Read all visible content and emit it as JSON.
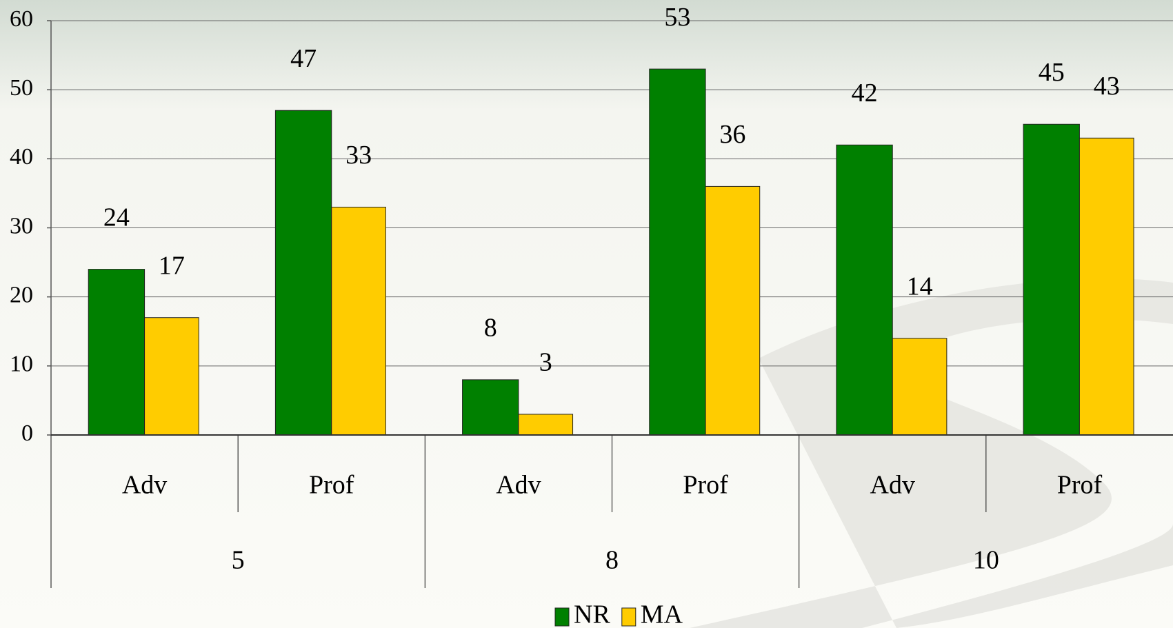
{
  "chart_data": {
    "type": "bar",
    "categories": [
      "Adv",
      "Prof",
      "Adv",
      "Prof",
      "Adv",
      "Prof"
    ],
    "groups": [
      "5",
      "8",
      "10"
    ],
    "series": [
      {
        "name": "NR",
        "color": "#008000",
        "values": [
          24,
          47,
          8,
          53,
          42,
          45
        ]
      },
      {
        "name": "MA",
        "color": "#ffcc00",
        "values": [
          17,
          33,
          3,
          36,
          14,
          43
        ]
      }
    ],
    "ylim": [
      0,
      60
    ],
    "yticks": [
      0,
      10,
      20,
      30,
      40,
      50,
      60
    ],
    "grid": true,
    "legend": "bottom"
  }
}
